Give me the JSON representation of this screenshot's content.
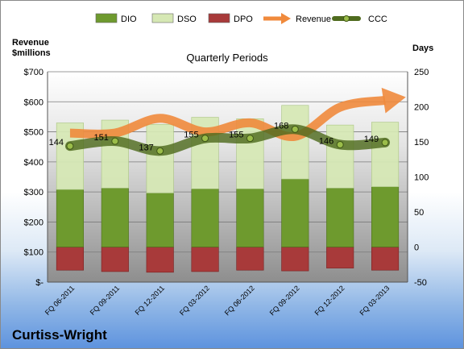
{
  "chart_data": {
    "type": "bar",
    "title": "Quarterly Periods",
    "company": "Curtiss-Wright",
    "ylabel_left": "Revenue\n$millions",
    "ylabel_right": "Days",
    "categories": [
      "FQ 06-2011",
      "FQ 09-2011",
      "FQ 12-2011",
      "FQ 03-2012",
      "FQ 06-2012",
      "FQ 09-2012",
      "FQ 12-2012",
      "FQ 03-2013"
    ],
    "left_axis": {
      "min": 0,
      "max": 700,
      "ticks": [
        0,
        100,
        200,
        300,
        400,
        500,
        600,
        700
      ],
      "tick_labels": [
        "$-",
        "$100",
        "$200",
        "$300",
        "$400",
        "$500",
        "$600",
        "$700"
      ]
    },
    "right_axis": {
      "min": -50,
      "max": 250,
      "ticks": [
        -50,
        0,
        50,
        100,
        150,
        200,
        250
      ]
    },
    "series": [
      {
        "name": "DIO",
        "kind": "bar",
        "axis": "right",
        "color": "#6e9a2e",
        "values": [
          82,
          84,
          77,
          83,
          83,
          97,
          84,
          86
        ]
      },
      {
        "name": "DSO",
        "kind": "bar",
        "axis": "right",
        "color": "#d6e8b4",
        "values": [
          95,
          97,
          98,
          102,
          100,
          105,
          90,
          92
        ]
      },
      {
        "name": "DPO",
        "kind": "bar",
        "axis": "right",
        "color": "#a83a3a",
        "values": [
          -33,
          -35,
          -36,
          -35,
          -33,
          -34,
          -30,
          -33
        ]
      },
      {
        "name": "Revenue",
        "kind": "line",
        "axis": "left",
        "color": "#f08a3c",
        "values": [
          496,
          496,
          545,
          500,
          530,
          485,
          582,
          605
        ]
      },
      {
        "name": "CCC",
        "kind": "line",
        "axis": "right",
        "color": "#4f6b1e",
        "values": [
          144,
          151,
          137,
          155,
          155,
          168,
          146,
          149
        ],
        "labels": [
          "144",
          "151",
          "137",
          "155",
          "155",
          "168",
          "146",
          "149"
        ]
      }
    ],
    "grid": true,
    "legend": "top"
  }
}
